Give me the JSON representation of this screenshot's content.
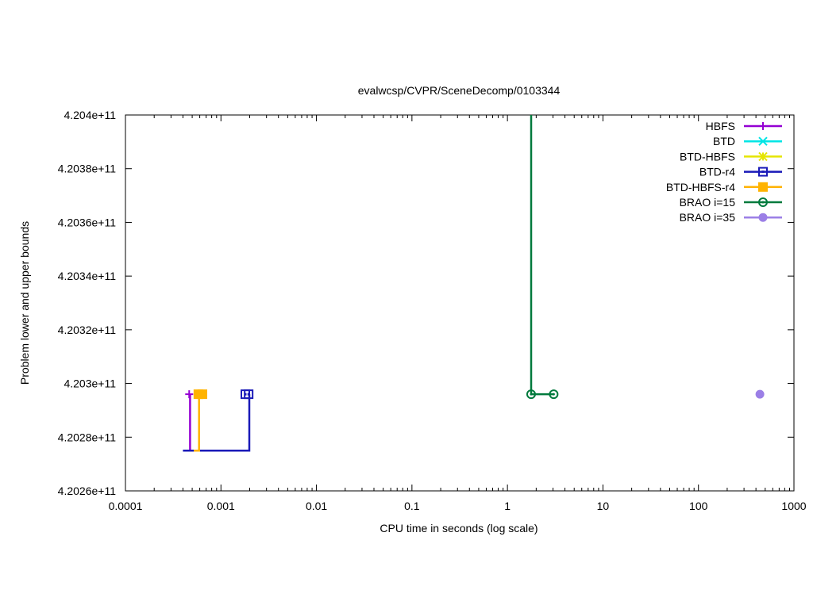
{
  "chart_data": {
    "type": "line",
    "title": "evalwcsp/CVPR/SceneDecomp/0103344",
    "xlabel": "CPU time in seconds (log scale)",
    "ylabel": "Problem lower and upper bounds",
    "xscale": "log",
    "xlim": [
      0.0001,
      1000
    ],
    "ylim": [
      420260000000,
      420400000000
    ],
    "xticks": [
      {
        "value": 0.0001,
        "label": "0.0001"
      },
      {
        "value": 0.001,
        "label": "0.001"
      },
      {
        "value": 0.01,
        "label": "0.01"
      },
      {
        "value": 0.1,
        "label": "0.1"
      },
      {
        "value": 1,
        "label": "1"
      },
      {
        "value": 10,
        "label": "10"
      },
      {
        "value": 100,
        "label": "100"
      },
      {
        "value": 1000,
        "label": "1000"
      }
    ],
    "yticks": [
      {
        "value": 420260000000,
        "label": "4.2026e+11"
      },
      {
        "value": 420280000000,
        "label": "4.2028e+11"
      },
      {
        "value": 420300000000,
        "label": "4.203e+11"
      },
      {
        "value": 420320000000,
        "label": "4.2032e+11"
      },
      {
        "value": 420340000000,
        "label": "4.2034e+11"
      },
      {
        "value": 420360000000,
        "label": "4.2036e+11"
      },
      {
        "value": 420380000000,
        "label": "4.2038e+11"
      },
      {
        "value": 420400000000,
        "label": "4.204e+11"
      }
    ],
    "grid": false,
    "legend_position": "top-right",
    "series": [
      {
        "name": "HBFS",
        "color": "#9400d3",
        "marker": "plus",
        "lines": [
          [
            [
              0.000475,
              420275000000
            ],
            [
              0.000475,
              420296000000
            ]
          ]
        ],
        "points": [
          [
            0.000465,
            420296000000
          ]
        ]
      },
      {
        "name": "BTD",
        "color": "#00e5e5",
        "marker": "cross",
        "lines": [],
        "points": []
      },
      {
        "name": "BTD-HBFS",
        "color": "#e5e500",
        "marker": "star",
        "lines": [],
        "points": []
      },
      {
        "name": "BTD-r4",
        "color": "#1a1ab8",
        "marker": "open-square",
        "lines": [
          [
            [
              0.0004,
              420275000000
            ],
            [
              0.00198,
              420275000000
            ],
            [
              0.00198,
              420296000000
            ]
          ]
        ],
        "points": [
          [
            0.0018,
            420296000000
          ],
          [
            0.00195,
            420296000000
          ]
        ]
      },
      {
        "name": "BTD-HBFS-r4",
        "color": "#ffb300",
        "marker": "filled-square",
        "lines": [
          [
            [
              0.00052,
              420275000000
            ],
            [
              0.00059,
              420275000000
            ],
            [
              0.00059,
              420296000000
            ]
          ]
        ],
        "points": [
          [
            0.00058,
            420296000000
          ],
          [
            0.00064,
            420296000000
          ]
        ]
      },
      {
        "name": "BRAO i=15",
        "color": "#007a3d",
        "marker": "open-circle",
        "lines": [
          [
            [
              1.77,
              420400000000
            ],
            [
              1.77,
              420296000000
            ],
            [
              3.05,
              420296000000
            ]
          ]
        ],
        "points": [
          [
            1.77,
            420296000000
          ],
          [
            3.05,
            420296000000
          ]
        ]
      },
      {
        "name": "BRAO i=35",
        "color": "#9b7fe6",
        "marker": "filled-circle",
        "lines": [],
        "points": [
          [
            440,
            420296000000
          ]
        ]
      }
    ]
  }
}
